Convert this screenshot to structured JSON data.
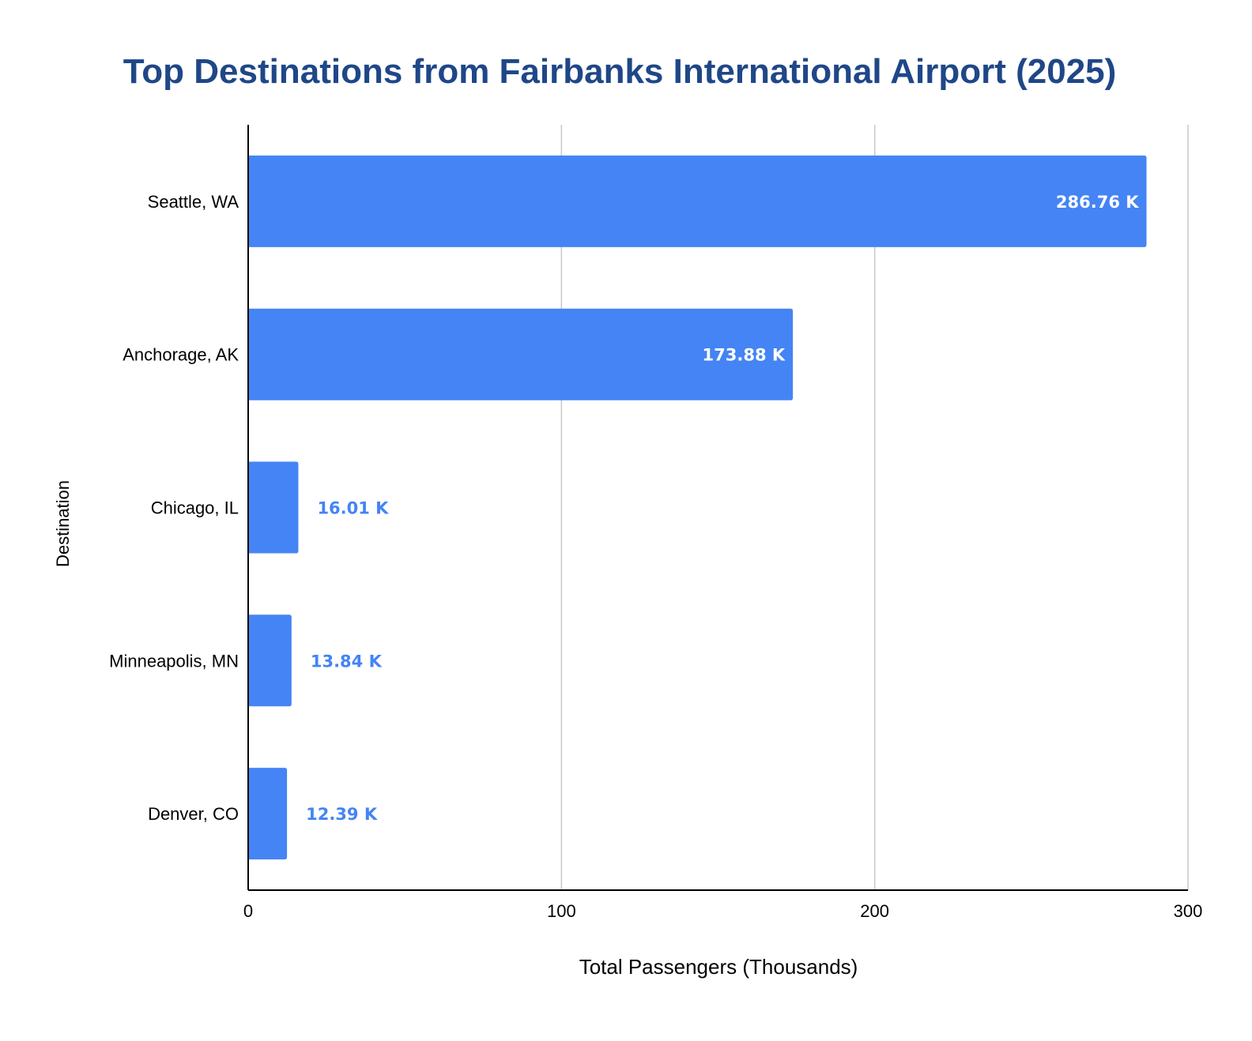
{
  "chart_data": {
    "type": "bar",
    "orientation": "horizontal",
    "title": "Top Destinations from Fairbanks International Airport (2025)",
    "xlabel": "Total Passengers (Thousands)",
    "ylabel": "Destination",
    "categories": [
      "Seattle, WA",
      "Anchorage, AK",
      "Chicago, IL",
      "Minneapolis, MN",
      "Denver, CO"
    ],
    "values": [
      286.76,
      173.88,
      16.01,
      13.84,
      12.39
    ],
    "data_labels": [
      "286.76 K",
      "173.88 K",
      "16.01 K",
      "13.84 K",
      "12.39 K"
    ],
    "xlim": [
      0,
      300
    ],
    "xticks": [
      0,
      100,
      200,
      300
    ],
    "xtick_labels": [
      "0",
      "100",
      "200",
      "300"
    ],
    "grid": "vertical",
    "legend": "none"
  },
  "colors": {
    "title": "#1f4788",
    "bar": "#4484f4",
    "label_inside": "#ffffff",
    "label_outside": "#4484f4",
    "grid": "#c8c8c8",
    "axis": "#000000"
  }
}
